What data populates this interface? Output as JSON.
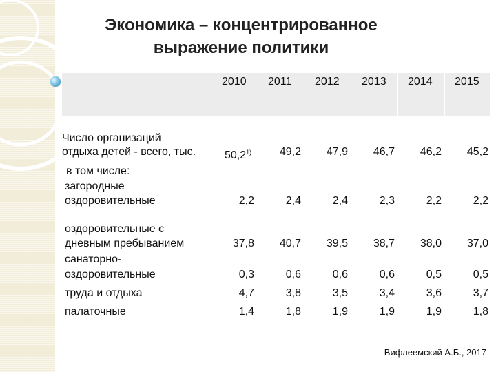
{
  "title": {
    "line1": "Экономика – концентрированное",
    "line2": "выражение политики"
  },
  "table": {
    "years": [
      "2010",
      "2011",
      "2012",
      "2013",
      "2014",
      "2015"
    ],
    "rows": [
      {
        "label_lines": [
          "Число организаций",
          "отдыха детей - всего, тыс."
        ],
        "values": [
          "50,2",
          "49,2",
          "47,9",
          "46,7",
          "46,2",
          "45,2"
        ],
        "first_footnote": "1)"
      },
      {
        "label_lines": [
          "в том числе:"
        ]
      },
      {
        "label_lines": [
          "загородные",
          "оздоровительные"
        ],
        "values": [
          "2,2",
          "2,4",
          "2,4",
          "2,3",
          "2,2",
          "2,2"
        ]
      },
      {
        "label_lines": [
          "оздоровительные с",
          "дневным пребыванием"
        ],
        "values": [
          "37,8",
          "40,7",
          "39,5",
          "38,7",
          "38,0",
          "37,0"
        ]
      },
      {
        "label_lines": [
          "санаторно-",
          "оздоровительные"
        ],
        "values": [
          "0,3",
          "0,6",
          "0,6",
          "0,6",
          "0,5",
          "0,5"
        ]
      },
      {
        "label_lines": [
          "труда и отдыха"
        ],
        "values": [
          "4,7",
          "3,8",
          "3,5",
          "3,4",
          "3,6",
          "3,7"
        ]
      },
      {
        "label_lines": [
          "палаточные"
        ],
        "values": [
          "1,4",
          "1,8",
          "1,9",
          "1,9",
          "1,9",
          "1,8"
        ]
      }
    ]
  },
  "footer": "Вифлеемский А.Б., 2017"
}
